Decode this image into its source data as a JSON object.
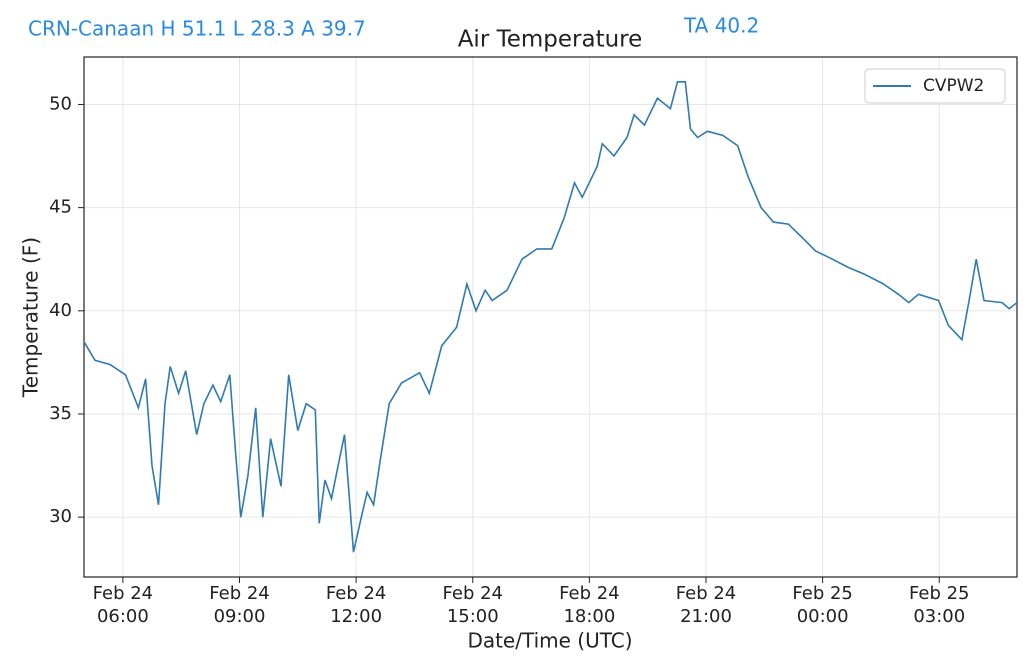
{
  "header": {
    "station": "CRN-Canaan H 51.1 L 28.3 A 39.7",
    "average": "TA 40.2"
  },
  "chart_data": {
    "type": "line",
    "title": "Air Temperature",
    "xlabel": "Date/Time (UTC)",
    "ylabel": "Temperature (F)",
    "x": [
      "Feb 24 05:00",
      "Feb 24 05:17",
      "Feb 24 05:40",
      "Feb 24 06:04",
      "Feb 24 06:24",
      "Feb 24 06:35",
      "Feb 24 06:45",
      "Feb 24 06:55",
      "Feb 24 07:05",
      "Feb 24 07:13",
      "Feb 24 07:26",
      "Feb 24 07:37",
      "Feb 24 07:54",
      "Feb 24 08:05",
      "Feb 24 08:19",
      "Feb 24 08:31",
      "Feb 24 08:45",
      "Feb 24 08:53",
      "Feb 24 09:02",
      "Feb 24 09:13",
      "Feb 24 09:25",
      "Feb 24 09:36",
      "Feb 24 09:48",
      "Feb 24 10:04",
      "Feb 24 10:16",
      "Feb 24 10:30",
      "Feb 24 10:43",
      "Feb 24 10:57",
      "Feb 24 11:03",
      "Feb 24 11:12",
      "Feb 24 11:22",
      "Feb 24 11:31",
      "Feb 24 11:42",
      "Feb 24 11:56",
      "Feb 24 12:08",
      "Feb 24 12:17",
      "Feb 24 12:27",
      "Feb 24 12:36",
      "Feb 24 12:51",
      "Feb 24 13:10",
      "Feb 24 13:38",
      "Feb 24 13:53",
      "Feb 24 14:12",
      "Feb 24 14:35",
      "Feb 24 14:51",
      "Feb 24 15:05",
      "Feb 24 15:19",
      "Feb 24 15:30",
      "Feb 24 15:53",
      "Feb 24 16:16",
      "Feb 24 16:39",
      "Feb 24 17:02",
      "Feb 24 17:21",
      "Feb 24 17:37",
      "Feb 24 17:49",
      "Feb 24 18:12",
      "Feb 24 18:20",
      "Feb 24 18:38",
      "Feb 24 18:58",
      "Feb 24 19:09",
      "Feb 24 19:25",
      "Feb 24 19:45",
      "Feb 24 20:05",
      "Feb 24 20:16",
      "Feb 24 20:28",
      "Feb 24 20:36",
      "Feb 24 20:47",
      "Feb 24 21:02",
      "Feb 24 21:26",
      "Feb 24 21:49",
      "Feb 24 22:05",
      "Feb 24 22:25",
      "Feb 24 22:44",
      "Feb 24 23:07",
      "Feb 24 23:30",
      "Feb 24 23:49",
      "Feb 25 00:09",
      "Feb 25 00:40",
      "Feb 25 01:03",
      "Feb 25 01:34",
      "Feb 25 01:57",
      "Feb 25 02:13",
      "Feb 25 02:28",
      "Feb 25 02:59",
      "Feb 25 03:14",
      "Feb 25 03:35",
      "Feb 25 03:46",
      "Feb 25 03:57",
      "Feb 25 04:09",
      "Feb 25 04:37",
      "Feb 25 04:48",
      "Feb 25 05:00"
    ],
    "series": [
      {
        "name": "CVPW2",
        "color": "#2f7ab0",
        "values": [
          38.5,
          37.6,
          37.4,
          36.9,
          35.3,
          36.7,
          32.5,
          30.6,
          35.5,
          37.3,
          36.0,
          37.1,
          34.0,
          35.5,
          36.4,
          35.6,
          36.9,
          33.5,
          30.0,
          32.0,
          35.3,
          30.0,
          33.8,
          31.5,
          36.9,
          34.2,
          35.5,
          35.2,
          29.7,
          31.8,
          30.9,
          32.3,
          34.0,
          28.3,
          30.0,
          31.2,
          30.6,
          32.5,
          35.5,
          36.5,
          37.0,
          36.0,
          38.3,
          39.2,
          41.3,
          40.0,
          41.0,
          40.5,
          41.0,
          42.5,
          43.0,
          43.0,
          44.5,
          46.2,
          45.5,
          47.0,
          48.1,
          47.5,
          48.4,
          49.5,
          49.0,
          50.3,
          49.8,
          51.1,
          51.1,
          48.8,
          48.4,
          48.7,
          48.5,
          48.0,
          46.5,
          45.0,
          44.3,
          44.2,
          43.5,
          42.9,
          42.6,
          42.1,
          41.8,
          41.3,
          40.8,
          40.4,
          40.8,
          40.5,
          39.3,
          38.6,
          40.5,
          42.5,
          40.5,
          40.4,
          40.1,
          40.4
        ]
      }
    ],
    "xlim": [
      "Feb 24 05:00",
      "Feb 25 05:00"
    ],
    "xticks": [
      {
        "value": "Feb 24 06:00",
        "label": [
          "Feb 24",
          "06:00"
        ]
      },
      {
        "value": "Feb 24 09:00",
        "label": [
          "Feb 24",
          "09:00"
        ]
      },
      {
        "value": "Feb 24 12:00",
        "label": [
          "Feb 24",
          "12:00"
        ]
      },
      {
        "value": "Feb 24 15:00",
        "label": [
          "Feb 24",
          "15:00"
        ]
      },
      {
        "value": "Feb 24 18:00",
        "label": [
          "Feb 24",
          "18:00"
        ]
      },
      {
        "value": "Feb 24 21:00",
        "label": [
          "Feb 24",
          "21:00"
        ]
      },
      {
        "value": "Feb 25 00:00",
        "label": [
          "Feb 25",
          "00:00"
        ]
      },
      {
        "value": "Feb 25 03:00",
        "label": [
          "Feb 25",
          "03:00"
        ]
      }
    ],
    "ylim": [
      27.1,
      52.3
    ],
    "yticks": [
      30,
      35,
      40,
      45,
      50
    ],
    "grid": true,
    "legend": "upper right"
  }
}
